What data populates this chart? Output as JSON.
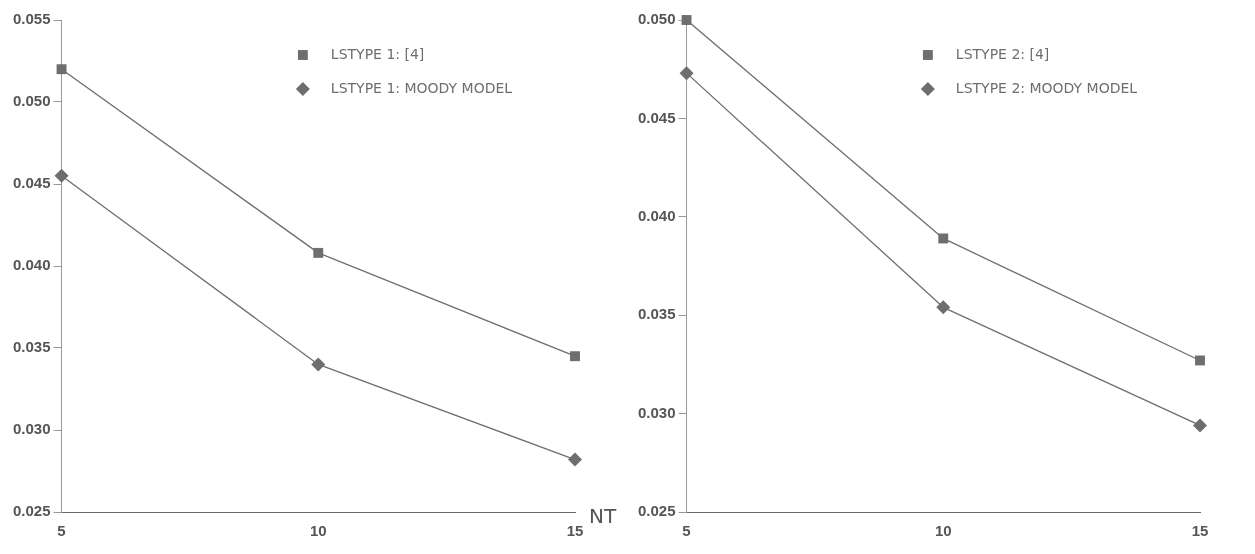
{
  "chart_data": [
    {
      "type": "line",
      "xlabel": "NT",
      "x": [
        5,
        10,
        15
      ],
      "xlim": [
        5,
        15
      ],
      "xticks": [
        5,
        10,
        15
      ],
      "ylim": [
        0.025,
        0.055
      ],
      "yticks": [
        {
          "value": 0.025,
          "label": "0.025"
        },
        {
          "value": 0.03,
          "label": "0.030"
        },
        {
          "value": 0.035,
          "label": "0.035"
        },
        {
          "value": 0.04,
          "label": "0.040"
        },
        {
          "value": 0.045,
          "label": "0.045"
        },
        {
          "value": 0.05,
          "label": "0.050"
        },
        {
          "value": 0.055,
          "label": "0.055"
        }
      ],
      "grid": false,
      "legend": "top right",
      "line_style": "solid",
      "series": [
        {
          "name": "LSTYPE 1: [4]",
          "color": "#6e6e6e",
          "marker": "square",
          "values": [
            0.052,
            0.0408,
            0.0345
          ]
        },
        {
          "name": "LSTYPE 1: MOODY MODEL",
          "color": "#6e6e6e",
          "marker": "diamond",
          "values": [
            0.0455,
            0.034,
            0.0282
          ]
        }
      ]
    },
    {
      "type": "line",
      "x": [
        5,
        10,
        15
      ],
      "xlim": [
        5,
        15
      ],
      "xticks": [
        5,
        10,
        15
      ],
      "ylim": [
        0.025,
        0.05
      ],
      "yticks": [
        {
          "value": 0.025,
          "label": "0.025"
        },
        {
          "value": 0.03,
          "label": "0.030"
        },
        {
          "value": 0.035,
          "label": "0.035"
        },
        {
          "value": 0.04,
          "label": "0.040"
        },
        {
          "value": 0.045,
          "label": "0.045"
        },
        {
          "value": 0.05,
          "label": "0.050"
        }
      ],
      "grid": false,
      "legend": "top right",
      "line_style": "solid",
      "series": [
        {
          "name": "LSTYPE 2: [4]",
          "color": "#6e6e6e",
          "marker": "square",
          "values": [
            0.05,
            0.0389,
            0.0327
          ]
        },
        {
          "name": "LSTYPE 2: MOODY MODEL",
          "color": "#6e6e6e",
          "marker": "diamond",
          "values": [
            0.0473,
            0.0354,
            0.0294
          ]
        }
      ]
    }
  ]
}
